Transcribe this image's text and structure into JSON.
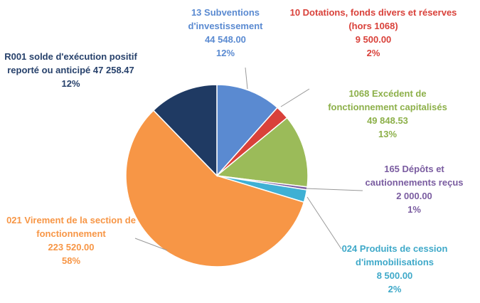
{
  "chart_data": {
    "type": "pie",
    "categories": [
      "13  Subventions d'investissement",
      "10  Dotations, fonds divers et réserves (hors 1068)",
      "1068 Excédent de fonctionnement capitalisés",
      "165 Dépôts et cautionnements reçus",
      "024 Produits de cession d'immobilisations",
      "021  Virement de la section de fonctionnement",
      "R001 solde d'exécution positif reporté ou anticipé"
    ],
    "values": [
      44548,
      9500,
      49848.53,
      2000,
      8500,
      223520,
      47258.47
    ],
    "value_labels": [
      "44 548.00",
      "9 500.00",
      "49 848.53",
      "2 000.00",
      "8 500.00",
      "223 520.00",
      "47 258.47"
    ],
    "percentages": [
      12,
      2,
      13,
      1,
      2,
      58,
      12
    ],
    "percentage_labels": [
      "12%",
      "2%",
      "13%",
      "1%",
      "2%",
      "58%",
      "12%"
    ],
    "colors": [
      "#5a8ad1",
      "#d9413a",
      "#9bbb59",
      "#7a5ca0",
      "#3fb0d4",
      "#f79646",
      "#1f3a63"
    ]
  }
}
